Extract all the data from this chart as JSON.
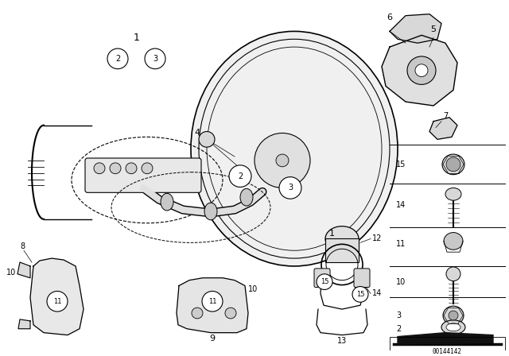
{
  "bg_color": "#ffffff",
  "diagram_number": "00144142",
  "line_color": "#000000"
}
